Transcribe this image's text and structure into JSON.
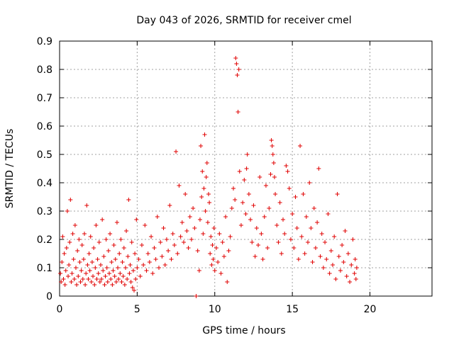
{
  "chart_data": {
    "type": "scatter",
    "title": "Day 043 of 2026, SRMTID for receiver cmel",
    "xlabel": "GPS time / hours",
    "ylabel": "SRMTID / TECUs",
    "xlim": [
      0,
      24
    ],
    "ylim": [
      0,
      0.9
    ],
    "x_ticks": [
      0,
      5,
      10,
      15,
      20
    ],
    "y_ticks": [
      0,
      0.1,
      0.2,
      0.3,
      0.4,
      0.5,
      0.6,
      0.7,
      0.8,
      0.9
    ],
    "grid": true,
    "marker": "+",
    "color": "#e00000",
    "series": [
      {
        "name": "SRMTID",
        "points": [
          [
            0.05,
            0.08
          ],
          [
            0.1,
            0.05
          ],
          [
            0.15,
            0.12
          ],
          [
            0.2,
            0.21
          ],
          [
            0.25,
            0.06
          ],
          [
            0.3,
            0.15
          ],
          [
            0.35,
            0.04
          ],
          [
            0.4,
            0.09
          ],
          [
            0.45,
            0.17
          ],
          [
            0.5,
            0.3
          ],
          [
            0.55,
            0.07
          ],
          [
            0.6,
            0.11
          ],
          [
            0.65,
            0.19
          ],
          [
            0.7,
            0.34
          ],
          [
            0.75,
            0.05
          ],
          [
            0.8,
            0.08
          ],
          [
            0.85,
            0.22
          ],
          [
            0.9,
            0.13
          ],
          [
            0.95,
            0.06
          ],
          [
            1.0,
            0.25
          ],
          [
            1.05,
            0.1
          ],
          [
            1.1,
            0.04
          ],
          [
            1.15,
            0.16
          ],
          [
            1.2,
            0.07
          ],
          [
            1.25,
            0.2
          ],
          [
            1.3,
            0.12
          ],
          [
            1.35,
            0.05
          ],
          [
            1.4,
            0.09
          ],
          [
            1.45,
            0.18
          ],
          [
            1.5,
            0.06
          ],
          [
            1.55,
            0.13
          ],
          [
            1.6,
            0.22
          ],
          [
            1.65,
            0.04
          ],
          [
            1.7,
            0.08
          ],
          [
            1.75,
            0.32
          ],
          [
            1.8,
            0.11
          ],
          [
            1.85,
            0.06
          ],
          [
            1.9,
            0.15
          ],
          [
            1.95,
            0.09
          ],
          [
            2.0,
            0.21
          ],
          [
            2.05,
            0.05
          ],
          [
            2.1,
            0.12
          ],
          [
            2.15,
            0.07
          ],
          [
            2.2,
            0.17
          ],
          [
            2.25,
            0.04
          ],
          [
            2.3,
            0.1
          ],
          [
            2.35,
            0.25
          ],
          [
            2.4,
            0.06
          ],
          [
            2.45,
            0.13
          ],
          [
            2.5,
            0.08
          ],
          [
            2.55,
            0.19
          ],
          [
            2.6,
            0.05
          ],
          [
            2.65,
            0.11
          ],
          [
            2.7,
            0.06
          ],
          [
            2.75,
            0.27
          ],
          [
            2.8,
            0.09
          ],
          [
            2.85,
            0.14
          ],
          [
            2.9,
            0.04
          ],
          [
            2.95,
            0.07
          ],
          [
            3.0,
            0.2
          ],
          [
            3.05,
            0.1
          ],
          [
            3.1,
            0.05
          ],
          [
            3.15,
            0.16
          ],
          [
            3.2,
            0.08
          ],
          [
            3.25,
            0.22
          ],
          [
            3.3,
            0.06
          ],
          [
            3.35,
            0.12
          ],
          [
            3.4,
            0.04
          ],
          [
            3.45,
            0.09
          ],
          [
            3.5,
            0.18
          ],
          [
            3.55,
            0.07
          ],
          [
            3.6,
            0.13
          ],
          [
            3.65,
            0.05
          ],
          [
            3.7,
            0.26
          ],
          [
            3.75,
            0.1
          ],
          [
            3.8,
            0.06
          ],
          [
            3.85,
            0.15
          ],
          [
            3.9,
            0.08
          ],
          [
            3.95,
            0.2
          ],
          [
            4.0,
            0.05
          ],
          [
            4.05,
            0.12
          ],
          [
            4.1,
            0.07
          ],
          [
            4.15,
            0.17
          ],
          [
            4.2,
            0.04
          ],
          [
            4.25,
            0.1
          ],
          [
            4.3,
            0.23
          ],
          [
            4.35,
            0.06
          ],
          [
            4.4,
            0.14
          ],
          [
            4.45,
            0.34
          ],
          [
            4.5,
            0.08
          ],
          [
            4.55,
            0.11
          ],
          [
            4.6,
            0.05
          ],
          [
            4.65,
            0.19
          ],
          [
            4.7,
            0.03
          ],
          [
            4.75,
            0.09
          ],
          [
            4.8,
            0.02
          ],
          [
            4.85,
            0.15
          ],
          [
            4.9,
            0.06
          ],
          [
            4.95,
            0.27
          ],
          [
            5.0,
            0.1
          ],
          [
            5.1,
            0.13
          ],
          [
            5.2,
            0.07
          ],
          [
            5.3,
            0.18
          ],
          [
            5.4,
            0.11
          ],
          [
            5.5,
            0.25
          ],
          [
            5.6,
            0.09
          ],
          [
            5.7,
            0.15
          ],
          [
            5.8,
            0.12
          ],
          [
            5.9,
            0.21
          ],
          [
            6.0,
            0.08
          ],
          [
            6.1,
            0.17
          ],
          [
            6.2,
            0.13
          ],
          [
            6.3,
            0.28
          ],
          [
            6.4,
            0.1
          ],
          [
            6.5,
            0.19
          ],
          [
            6.6,
            0.14
          ],
          [
            6.7,
            0.24
          ],
          [
            6.8,
            0.11
          ],
          [
            6.9,
            0.2
          ],
          [
            7.0,
            0.16
          ],
          [
            7.1,
            0.32
          ],
          [
            7.2,
            0.13
          ],
          [
            7.3,
            0.22
          ],
          [
            7.4,
            0.18
          ],
          [
            7.5,
            0.51
          ],
          [
            7.6,
            0.15
          ],
          [
            7.7,
            0.39
          ],
          [
            7.8,
            0.21
          ],
          [
            7.9,
            0.26
          ],
          [
            8.0,
            0.19
          ],
          [
            8.1,
            0.36
          ],
          [
            8.2,
            0.23
          ],
          [
            8.3,
            0.17
          ],
          [
            8.4,
            0.28
          ],
          [
            8.5,
            0.2
          ],
          [
            8.6,
            0.31
          ],
          [
            8.7,
            0.24
          ],
          [
            8.8,
            0.0
          ],
          [
            8.9,
            0.16
          ],
          [
            9.0,
            0.09
          ],
          [
            9.05,
            0.27
          ],
          [
            9.1,
            0.53
          ],
          [
            9.15,
            0.35
          ],
          [
            9.2,
            0.44
          ],
          [
            9.25,
            0.22
          ],
          [
            9.3,
            0.38
          ],
          [
            9.35,
            0.57
          ],
          [
            9.4,
            0.3
          ],
          [
            9.45,
            0.42
          ],
          [
            9.5,
            0.47
          ],
          [
            9.55,
            0.26
          ],
          [
            9.6,
            0.36
          ],
          [
            9.65,
            0.33
          ],
          [
            9.7,
            0.15
          ],
          [
            9.75,
            0.21
          ],
          [
            9.8,
            0.11
          ],
          [
            9.85,
            0.18
          ],
          [
            9.9,
            0.13
          ],
          [
            9.95,
            0.24
          ],
          [
            10.0,
            0.09
          ],
          [
            10.1,
            0.17
          ],
          [
            10.2,
            0.12
          ],
          [
            10.3,
            0.22
          ],
          [
            10.4,
            0.08
          ],
          [
            10.5,
            0.19
          ],
          [
            10.6,
            0.14
          ],
          [
            10.7,
            0.28
          ],
          [
            10.8,
            0.05
          ],
          [
            10.9,
            0.16
          ],
          [
            11.0,
            0.21
          ],
          [
            11.1,
            0.31
          ],
          [
            11.2,
            0.38
          ],
          [
            11.3,
            0.34
          ],
          [
            11.35,
            0.84
          ],
          [
            11.4,
            0.82
          ],
          [
            11.45,
            0.78
          ],
          [
            11.5,
            0.65
          ],
          [
            11.55,
            0.8
          ],
          [
            11.6,
            0.44
          ],
          [
            11.7,
            0.25
          ],
          [
            11.8,
            0.33
          ],
          [
            11.9,
            0.41
          ],
          [
            12.0,
            0.29
          ],
          [
            12.05,
            0.45
          ],
          [
            12.1,
            0.5
          ],
          [
            12.2,
            0.36
          ],
          [
            12.3,
            0.27
          ],
          [
            12.4,
            0.19
          ],
          [
            12.5,
            0.32
          ],
          [
            12.6,
            0.14
          ],
          [
            12.7,
            0.24
          ],
          [
            12.8,
            0.18
          ],
          [
            12.9,
            0.42
          ],
          [
            13.0,
            0.22
          ],
          [
            13.1,
            0.13
          ],
          [
            13.2,
            0.28
          ],
          [
            13.3,
            0.39
          ],
          [
            13.4,
            0.17
          ],
          [
            13.5,
            0.31
          ],
          [
            13.6,
            0.43
          ],
          [
            13.65,
            0.55
          ],
          [
            13.7,
            0.53
          ],
          [
            13.75,
            0.5
          ],
          [
            13.8,
            0.47
          ],
          [
            13.85,
            0.42
          ],
          [
            13.9,
            0.36
          ],
          [
            14.0,
            0.25
          ],
          [
            14.1,
            0.19
          ],
          [
            14.2,
            0.33
          ],
          [
            14.3,
            0.15
          ],
          [
            14.4,
            0.27
          ],
          [
            14.5,
            0.22
          ],
          [
            14.6,
            0.46
          ],
          [
            14.7,
            0.44
          ],
          [
            14.8,
            0.38
          ],
          [
            14.9,
            0.2
          ],
          [
            15.0,
            0.29
          ],
          [
            15.1,
            0.17
          ],
          [
            15.2,
            0.35
          ],
          [
            15.3,
            0.24
          ],
          [
            15.4,
            0.13
          ],
          [
            15.5,
            0.53
          ],
          [
            15.6,
            0.21
          ],
          [
            15.7,
            0.36
          ],
          [
            15.8,
            0.15
          ],
          [
            15.9,
            0.28
          ],
          [
            16.0,
            0.19
          ],
          [
            16.1,
            0.4
          ],
          [
            16.2,
            0.24
          ],
          [
            16.3,
            0.12
          ],
          [
            16.4,
            0.31
          ],
          [
            16.5,
            0.17
          ],
          [
            16.6,
            0.26
          ],
          [
            16.7,
            0.45
          ],
          [
            16.8,
            0.14
          ],
          [
            16.9,
            0.22
          ],
          [
            17.0,
            0.1
          ],
          [
            17.1,
            0.19
          ],
          [
            17.2,
            0.13
          ],
          [
            17.3,
            0.29
          ],
          [
            17.4,
            0.08
          ],
          [
            17.5,
            0.16
          ],
          [
            17.6,
            0.11
          ],
          [
            17.7,
            0.21
          ],
          [
            17.8,
            0.06
          ],
          [
            17.9,
            0.36
          ],
          [
            18.0,
            0.14
          ],
          [
            18.1,
            0.09
          ],
          [
            18.2,
            0.18
          ],
          [
            18.3,
            0.12
          ],
          [
            18.4,
            0.23
          ],
          [
            18.5,
            0.07
          ],
          [
            18.6,
            0.15
          ],
          [
            18.7,
            0.05
          ],
          [
            18.8,
            0.11
          ],
          [
            18.9,
            0.2
          ],
          [
            19.0,
            0.08
          ],
          [
            19.05,
            0.13
          ],
          [
            19.1,
            0.06
          ],
          [
            19.15,
            0.1
          ]
        ]
      }
    ]
  }
}
